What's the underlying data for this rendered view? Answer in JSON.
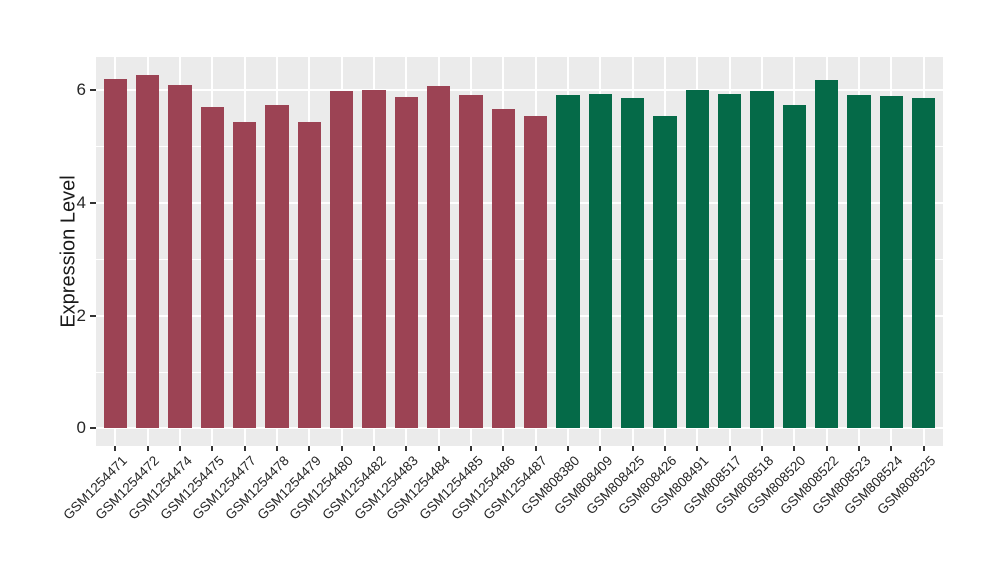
{
  "chart_data": {
    "type": "bar",
    "title": "",
    "xlabel": "",
    "ylabel": "Expression Level",
    "ylim": [
      0,
      6.57
    ],
    "yticks": [
      0,
      2,
      4,
      6
    ],
    "minor_yticks": [
      1,
      3,
      5
    ],
    "grid": true,
    "legend": false,
    "panel_bg": "#EBEBEB",
    "grid_color": "#FFFFFF",
    "tick_color": "#333333",
    "axis_text_color": "#262626",
    "categories": [
      "GSM1254471",
      "GSM1254472",
      "GSM1254474",
      "GSM1254475",
      "GSM1254477",
      "GSM1254478",
      "GSM1254479",
      "GSM1254480",
      "GSM1254482",
      "GSM1254483",
      "GSM1254484",
      "GSM1254485",
      "GSM1254486",
      "GSM1254487",
      "GSM808380",
      "GSM808409",
      "GSM808425",
      "GSM808426",
      "GSM808491",
      "GSM808517",
      "GSM808518",
      "GSM808520",
      "GSM808522",
      "GSM808523",
      "GSM808524",
      "GSM808525"
    ],
    "values": [
      6.21,
      6.28,
      6.1,
      5.71,
      5.44,
      5.74,
      5.43,
      5.98,
      6.01,
      5.89,
      6.08,
      5.91,
      5.67,
      5.54,
      5.92,
      5.94,
      5.86,
      5.55,
      6.0,
      5.93,
      5.99,
      5.74,
      6.19,
      5.92,
      5.9,
      5.87
    ],
    "bar_groups": [
      "group1",
      "group1",
      "group1",
      "group1",
      "group1",
      "group1",
      "group1",
      "group1",
      "group1",
      "group1",
      "group1",
      "group1",
      "group1",
      "group1",
      "group2",
      "group2",
      "group2",
      "group2",
      "group2",
      "group2",
      "group2",
      "group2",
      "group2",
      "group2",
      "group2",
      "group2"
    ],
    "group_colors": {
      "group1": "#9C4354",
      "group2": "#056A48"
    }
  }
}
